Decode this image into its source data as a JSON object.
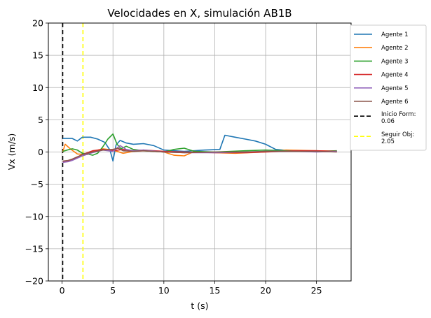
{
  "chart_data": {
    "type": "line",
    "title": "Velocidades en X, simulación AB1B",
    "xlabel": "t (s)",
    "ylabel": "Vx (m/s)",
    "xlim": [
      -1.35,
      28.4
    ],
    "ylim": [
      -20,
      20
    ],
    "xticks": [
      0,
      5,
      10,
      15,
      20,
      25
    ],
    "yticks": [
      -20,
      -15,
      -10,
      -5,
      0,
      5,
      10,
      15,
      20
    ],
    "grid": true,
    "legend_placement": "outside-right",
    "series": [
      {
        "name": "Agente 1",
        "color": "#1f77b4",
        "points": [
          [
            0.06,
            2.1
          ],
          [
            1,
            2.1
          ],
          [
            1.5,
            1.7
          ],
          [
            2,
            2.3
          ],
          [
            2.8,
            2.3
          ],
          [
            3.5,
            2.0
          ],
          [
            4.2,
            1.5
          ],
          [
            4.7,
            0.3
          ],
          [
            5,
            -1.4
          ],
          [
            5.3,
            1.1
          ],
          [
            5.7,
            1.8
          ],
          [
            6.3,
            1.4
          ],
          [
            7,
            1.2
          ],
          [
            8,
            1.3
          ],
          [
            9,
            1.0
          ],
          [
            10,
            0.3
          ],
          [
            12,
            0.1
          ],
          [
            14,
            0.3
          ],
          [
            15.5,
            0.4
          ],
          [
            16,
            2.6
          ],
          [
            17,
            2.3
          ],
          [
            18,
            2.0
          ],
          [
            19,
            1.7
          ],
          [
            20,
            1.2
          ],
          [
            21,
            0.4
          ],
          [
            23,
            0.1
          ],
          [
            25,
            0.1
          ],
          [
            27,
            0.1
          ]
        ]
      },
      {
        "name": "Agente 2",
        "color": "#ff7f0e",
        "points": [
          [
            0.06,
            0.0
          ],
          [
            0.3,
            1.2
          ],
          [
            0.8,
            0.5
          ],
          [
            1.5,
            -0.3
          ],
          [
            2.5,
            -0.4
          ],
          [
            3,
            0.1
          ],
          [
            4,
            0.5
          ],
          [
            5,
            0.3
          ],
          [
            6,
            -0.2
          ],
          [
            7,
            0.1
          ],
          [
            8,
            0.2
          ],
          [
            10,
            0.0
          ],
          [
            11,
            -0.5
          ],
          [
            12,
            -0.6
          ],
          [
            13,
            0.1
          ],
          [
            15,
            -0.1
          ],
          [
            17,
            -0.2
          ],
          [
            20,
            0.0
          ],
          [
            22,
            0.3
          ],
          [
            25,
            0.2
          ],
          [
            27,
            0.1
          ]
        ]
      },
      {
        "name": "Agente 3",
        "color": "#2ca02c",
        "points": [
          [
            0.06,
            0.1
          ],
          [
            0.5,
            0.3
          ],
          [
            1,
            0.5
          ],
          [
            1.5,
            0.3
          ],
          [
            2,
            -0.2
          ],
          [
            2.5,
            -0.3
          ],
          [
            3,
            -0.5
          ],
          [
            3.5,
            -0.2
          ],
          [
            4,
            0.8
          ],
          [
            4.5,
            2.0
          ],
          [
            5,
            2.8
          ],
          [
            5.4,
            1.2
          ],
          [
            5.8,
            0.5
          ],
          [
            6.3,
            0.9
          ],
          [
            7,
            0.4
          ],
          [
            8,
            0.2
          ],
          [
            10,
            0.0
          ],
          [
            11,
            0.4
          ],
          [
            12,
            0.6
          ],
          [
            13,
            0.1
          ],
          [
            15,
            0.0
          ],
          [
            18,
            0.2
          ],
          [
            20,
            0.3
          ],
          [
            22,
            0.2
          ],
          [
            25,
            0.1
          ],
          [
            27,
            0.2
          ]
        ]
      },
      {
        "name": "Agente 4",
        "color": "#d62728",
        "points": [
          [
            0.06,
            -1.5
          ],
          [
            0.6,
            -1.4
          ],
          [
            1,
            -1.2
          ],
          [
            2,
            -0.4
          ],
          [
            3,
            0.2
          ],
          [
            4,
            0.4
          ],
          [
            5,
            0.2
          ],
          [
            6,
            0.4
          ],
          [
            7,
            0.2
          ],
          [
            8,
            0.3
          ],
          [
            10,
            0.1
          ],
          [
            12,
            0.0
          ],
          [
            15,
            -0.1
          ],
          [
            18,
            -0.1
          ],
          [
            20,
            0.0
          ],
          [
            23,
            0.2
          ],
          [
            25,
            0.2
          ],
          [
            27,
            0.1
          ]
        ]
      },
      {
        "name": "Agente 5",
        "color": "#9467bd",
        "points": [
          [
            0.06,
            -1.6
          ],
          [
            0.6,
            -1.5
          ],
          [
            1,
            -1.3
          ],
          [
            2,
            -0.6
          ],
          [
            3,
            -0.1
          ],
          [
            4,
            0.3
          ],
          [
            5,
            0.1
          ],
          [
            5.7,
            1.0
          ],
          [
            6.3,
            0.4
          ],
          [
            7,
            0.2
          ],
          [
            8,
            0.3
          ],
          [
            10,
            0.0
          ],
          [
            12,
            -0.1
          ],
          [
            15,
            -0.1
          ],
          [
            18,
            0.0
          ],
          [
            20,
            0.1
          ],
          [
            23,
            0.1
          ],
          [
            25,
            0.0
          ],
          [
            27,
            0.1
          ]
        ]
      },
      {
        "name": "Agente 6",
        "color": "#8c564b",
        "points": [
          [
            0.06,
            -1.4
          ],
          [
            0.6,
            -1.3
          ],
          [
            1,
            -1.1
          ],
          [
            2,
            -0.4
          ],
          [
            3,
            0.0
          ],
          [
            4,
            0.3
          ],
          [
            5,
            0.4
          ],
          [
            5.5,
            0.6
          ],
          [
            6,
            0.2
          ],
          [
            7,
            0.1
          ],
          [
            8,
            0.2
          ],
          [
            10,
            0.0
          ],
          [
            12,
            -0.1
          ],
          [
            15,
            0.0
          ],
          [
            18,
            0.0
          ],
          [
            20,
            0.1
          ],
          [
            23,
            0.1
          ],
          [
            25,
            0.1
          ],
          [
            27,
            0.0
          ]
        ]
      }
    ],
    "vlines": [
      {
        "name": "Inicio Form:",
        "value_label": "0.06",
        "x": 0.06,
        "color": "#000000"
      },
      {
        "name": "Seguir Obj:",
        "value_label": "2.05",
        "x": 2.05,
        "color": "#ffff00"
      }
    ]
  }
}
